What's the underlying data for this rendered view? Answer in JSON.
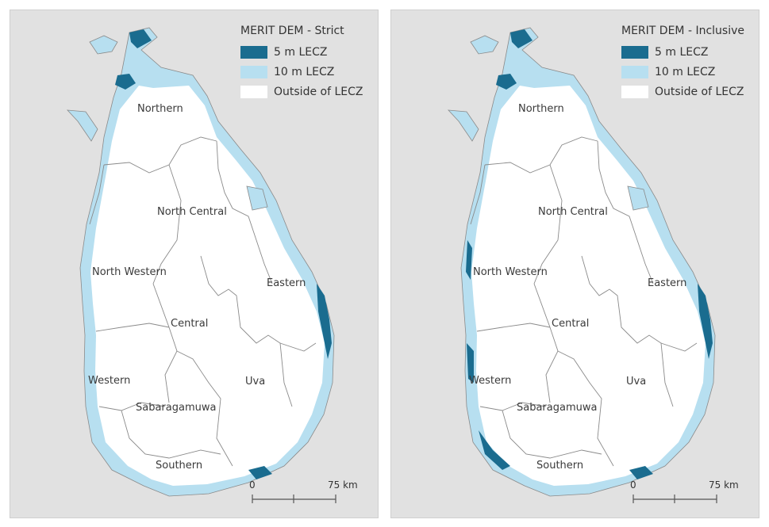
{
  "colors": {
    "background": "#e1e1e1",
    "lecz_5m": "#1a6c8f",
    "lecz_10m": "#b7dff0",
    "outside": "#ffffff",
    "border": "#8a8a8a"
  },
  "panels": [
    {
      "legend_title": "MERIT DEM - Strict",
      "legend_items": [
        "5 m LECZ",
        "10 m LECZ",
        "Outside of LECZ"
      ],
      "regions": [
        "Northern",
        "North Central",
        "North Western",
        "Eastern",
        "Central",
        "Uva",
        "Western",
        "Sabaragamuwa",
        "Southern"
      ],
      "scale": {
        "start": "0",
        "end": "75 km"
      }
    },
    {
      "legend_title": "MERIT DEM - Inclusive",
      "legend_items": [
        "5 m LECZ",
        "10 m LECZ",
        "Outside of LECZ"
      ],
      "regions": [
        "Northern",
        "North Central",
        "North Western",
        "Eastern",
        "Central",
        "Uva",
        "Western",
        "Sabaragamuwa",
        "Southern"
      ],
      "scale": {
        "start": "0",
        "end": "75 km"
      }
    }
  ]
}
